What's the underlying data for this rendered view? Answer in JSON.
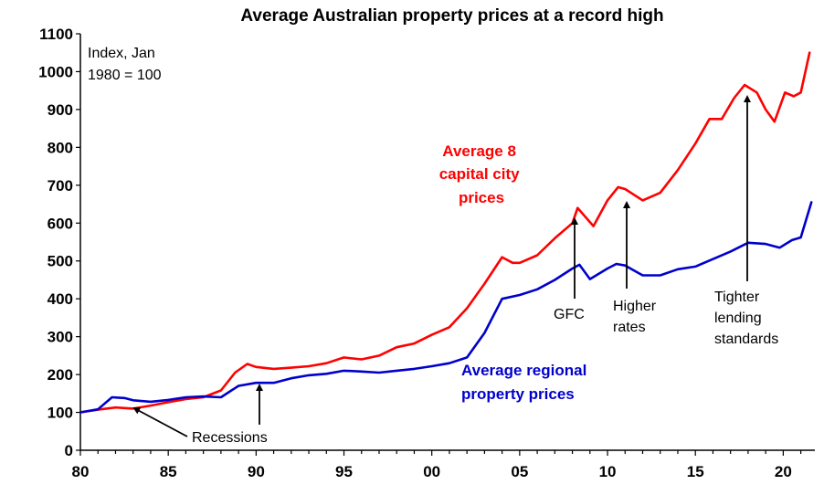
{
  "chart_data": {
    "type": "line",
    "title": "Average Australian property prices at a record high",
    "index_note": [
      "Index, Jan",
      "1980 = 100"
    ],
    "xlabel": "",
    "ylabel": "",
    "xlim": [
      1980,
      2021.8
    ],
    "ylim": [
      0,
      1100
    ],
    "y_ticks": [
      0,
      100,
      200,
      300,
      400,
      500,
      600,
      700,
      800,
      900,
      1000,
      1100
    ],
    "x_ticks": [
      {
        "value": 1980,
        "label": "80"
      },
      {
        "value": 1985,
        "label": "85"
      },
      {
        "value": 1990,
        "label": "90"
      },
      {
        "value": 1995,
        "label": "95"
      },
      {
        "value": 2000,
        "label": "00"
      },
      {
        "value": 2005,
        "label": "05"
      },
      {
        "value": 2010,
        "label": "10"
      },
      {
        "value": 2015,
        "label": "15"
      },
      {
        "value": 2020,
        "label": "20"
      }
    ],
    "grid": false,
    "legend": "inline labels",
    "series": [
      {
        "name": "Average 8 capital city prices",
        "label_lines": [
          "Average 8",
          "capital city",
          "prices"
        ],
        "color": "#ff0000",
        "points": [
          [
            1980,
            100
          ],
          [
            1981,
            107
          ],
          [
            1982,
            113
          ],
          [
            1983,
            110
          ],
          [
            1984,
            118
          ],
          [
            1985,
            127
          ],
          [
            1986,
            135
          ],
          [
            1987,
            140
          ],
          [
            1988,
            158
          ],
          [
            1988.8,
            205
          ],
          [
            1989.5,
            228
          ],
          [
            1990,
            220
          ],
          [
            1991,
            215
          ],
          [
            1992,
            218
          ],
          [
            1993,
            222
          ],
          [
            1994,
            230
          ],
          [
            1995,
            245
          ],
          [
            1996,
            240
          ],
          [
            1997,
            250
          ],
          [
            1998,
            272
          ],
          [
            1999,
            282
          ],
          [
            2000,
            305
          ],
          [
            2001,
            325
          ],
          [
            2002,
            375
          ],
          [
            2003,
            440
          ],
          [
            2004,
            510
          ],
          [
            2004.6,
            495
          ],
          [
            2005,
            495
          ],
          [
            2006,
            515
          ],
          [
            2007,
            560
          ],
          [
            2008,
            600
          ],
          [
            2008.3,
            640
          ],
          [
            2009.2,
            592
          ],
          [
            2010,
            660
          ],
          [
            2010.6,
            695
          ],
          [
            2011,
            690
          ],
          [
            2011.5,
            675
          ],
          [
            2012,
            660
          ],
          [
            2013,
            680
          ],
          [
            2014,
            740
          ],
          [
            2015,
            810
          ],
          [
            2015.8,
            875
          ],
          [
            2016.5,
            875
          ],
          [
            2017.2,
            930
          ],
          [
            2017.8,
            965
          ],
          [
            2018.5,
            945
          ],
          [
            2019,
            900
          ],
          [
            2019.5,
            868
          ],
          [
            2020.1,
            945
          ],
          [
            2020.6,
            935
          ],
          [
            2021,
            945
          ],
          [
            2021.5,
            1050
          ]
        ]
      },
      {
        "name": "Average regional property prices",
        "label_lines": [
          "Average regional",
          "property prices"
        ],
        "color": "#0000cc",
        "points": [
          [
            1980,
            100
          ],
          [
            1981,
            108
          ],
          [
            1981.8,
            140
          ],
          [
            1982.5,
            138
          ],
          [
            1983,
            132
          ],
          [
            1984,
            128
          ],
          [
            1985,
            133
          ],
          [
            1986,
            140
          ],
          [
            1987,
            142
          ],
          [
            1988,
            140
          ],
          [
            1989,
            170
          ],
          [
            1990,
            178
          ],
          [
            1991,
            178
          ],
          [
            1992,
            190
          ],
          [
            1993,
            198
          ],
          [
            1994,
            202
          ],
          [
            1995,
            210
          ],
          [
            1996,
            208
          ],
          [
            1997,
            205
          ],
          [
            1998,
            210
          ],
          [
            1999,
            215
          ],
          [
            2000,
            222
          ],
          [
            2001,
            230
          ],
          [
            2002,
            245
          ],
          [
            2003,
            310
          ],
          [
            2004,
            400
          ],
          [
            2005,
            410
          ],
          [
            2006,
            425
          ],
          [
            2007,
            450
          ],
          [
            2008,
            480
          ],
          [
            2008.4,
            490
          ],
          [
            2009,
            452
          ],
          [
            2010,
            480
          ],
          [
            2010.5,
            492
          ],
          [
            2011,
            488
          ],
          [
            2012,
            462
          ],
          [
            2013,
            462
          ],
          [
            2014,
            478
          ],
          [
            2015,
            485
          ],
          [
            2016,
            505
          ],
          [
            2017,
            525
          ],
          [
            2018,
            548
          ],
          [
            2019,
            545
          ],
          [
            2019.8,
            535
          ],
          [
            2020.5,
            555
          ],
          [
            2021,
            562
          ],
          [
            2021.6,
            655
          ]
        ]
      }
    ],
    "annotations": [
      {
        "text": "Recessions",
        "lines": [
          "Recessions"
        ]
      },
      {
        "text": "GFC",
        "lines": [
          "GFC"
        ]
      },
      {
        "text": "Higher rates",
        "lines": [
          "Higher",
          "rates"
        ]
      },
      {
        "text": "Tighter lending standards",
        "lines": [
          "Tighter",
          "lending",
          "standards"
        ]
      }
    ]
  }
}
